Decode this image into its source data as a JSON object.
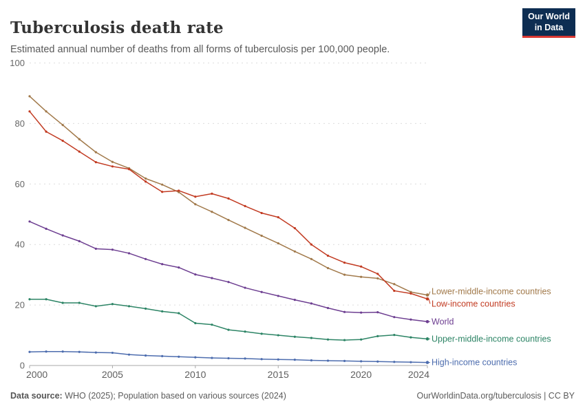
{
  "header": {
    "title": "Tuberculosis death rate",
    "subtitle": "Estimated annual number of deaths from all forms of tuberculosis per 100,000 people."
  },
  "logo": {
    "line1": "Our World",
    "line2": "in Data",
    "bg_color": "#0d2d52",
    "bar_color": "#d93832"
  },
  "footer": {
    "source_label": "Data source:",
    "source_text": " WHO (2025); Population based on various sources (2024)",
    "right_text": "OurWorldinData.org/tuberculosis | CC BY"
  },
  "chart_data": {
    "type": "line",
    "title": "Tuberculosis death rate",
    "xlabel": "",
    "ylabel": "",
    "x": [
      2000,
      2001,
      2002,
      2003,
      2004,
      2005,
      2006,
      2007,
      2008,
      2009,
      2010,
      2011,
      2012,
      2013,
      2014,
      2015,
      2016,
      2017,
      2018,
      2019,
      2020,
      2021,
      2022,
      2023,
      2024
    ],
    "x_ticks": [
      2000,
      2005,
      2010,
      2015,
      2020,
      2024
    ],
    "y_ticks": [
      0,
      20,
      40,
      60,
      80,
      100
    ],
    "ylim": [
      0,
      100
    ],
    "grid": "horizontal-dashed",
    "legend_position": "right-of-line-ends",
    "series": [
      {
        "name": "Lower-middle-income countries",
        "color": "#a1794a",
        "values": [
          89.0,
          84.0,
          79.5,
          74.8,
          70.5,
          67.3,
          65.2,
          61.8,
          59.8,
          57.3,
          53.3,
          50.8,
          48.1,
          45.5,
          42.9,
          40.4,
          37.7,
          35.2,
          32.2,
          30.0,
          29.3,
          28.8,
          26.9,
          24.3,
          23.3
        ]
      },
      {
        "name": "Low-income countries",
        "color": "#c23b22",
        "values": [
          84.0,
          77.3,
          74.3,
          70.7,
          67.2,
          65.8,
          64.9,
          60.8,
          57.4,
          57.8,
          55.8,
          56.8,
          55.2,
          52.7,
          50.4,
          49.0,
          45.4,
          40.0,
          36.3,
          34.0,
          32.7,
          30.3,
          24.7,
          23.8,
          22.0
        ]
      },
      {
        "name": "World",
        "color": "#6d3e91",
        "values": [
          47.6,
          45.2,
          43.0,
          41.1,
          38.6,
          38.3,
          37.1,
          35.2,
          33.5,
          32.4,
          30.1,
          28.9,
          27.6,
          25.7,
          24.3,
          23.0,
          21.7,
          20.5,
          19.0,
          17.7,
          17.5,
          17.6,
          16.0,
          15.2,
          14.5
        ]
      },
      {
        "name": "Upper-middle-income countries",
        "color": "#2c8465",
        "values": [
          21.9,
          21.9,
          20.7,
          20.7,
          19.6,
          20.3,
          19.6,
          18.8,
          17.9,
          17.3,
          14.0,
          13.5,
          11.8,
          11.2,
          10.5,
          10.0,
          9.5,
          9.1,
          8.6,
          8.4,
          8.6,
          9.7,
          10.1,
          9.3,
          8.8
        ]
      },
      {
        "name": "High-income countries",
        "color": "#4c6cae",
        "values": [
          4.5,
          4.6,
          4.6,
          4.5,
          4.3,
          4.2,
          3.6,
          3.3,
          3.1,
          2.9,
          2.7,
          2.5,
          2.4,
          2.3,
          2.1,
          2.0,
          1.9,
          1.7,
          1.6,
          1.5,
          1.4,
          1.3,
          1.2,
          1.1,
          1.0
        ]
      }
    ]
  }
}
